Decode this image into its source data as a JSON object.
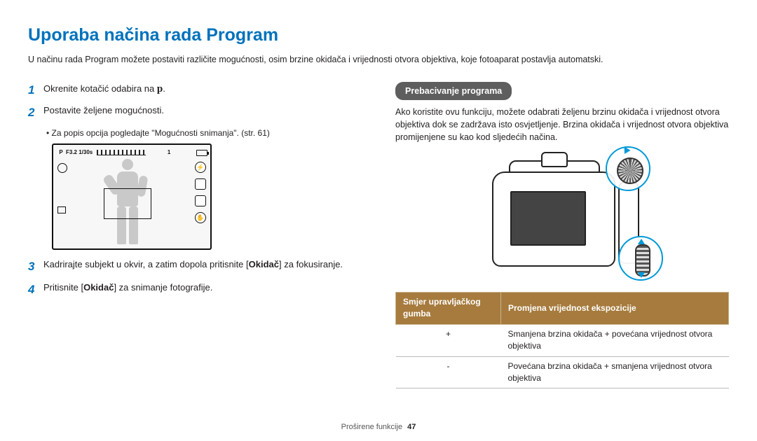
{
  "title": "Uporaba načina rada Program",
  "intro": "U načinu rada Program možete postaviti različite mogućnosti, osim brzine okidača i vrijednosti otvora objektiva, koje fotoaparat postavlja automatski.",
  "steps": {
    "s1": {
      "num": "1",
      "text_a": "Okrenite kotačić odabira na ",
      "mode_icon": "p"
    },
    "s2": {
      "num": "2",
      "text": "Postavite željene mogućnosti."
    },
    "s2_sub": "Za popis opcija pogledajte \"Mogućnosti snimanja\". (str. 61)",
    "s3": {
      "num": "3",
      "text_a": "Kadrirajte subjekt u okvir, a zatim dopola pritisnite [",
      "bold": "Okidač",
      "text_b": "] za fokusiranje."
    },
    "s4": {
      "num": "4",
      "text_a": "Pritisnite [",
      "bold": "Okidač",
      "text_b": "] za snimanje fotografije."
    }
  },
  "lcd": {
    "exposure_label": "F3.2  1/30s",
    "mode": "P",
    "count": "1"
  },
  "right": {
    "pill": "Prebacivanje programa",
    "para": "Ako koristite ovu funkciju, možete odabrati željenu brzinu okidača i vrijednost otvora objektiva dok se zadržava isto osvjetljenje. Brzina okidača i vrijednost otvora objektiva promijenjene su kao kod sljedećih načina."
  },
  "table": {
    "header1": "Smjer upravljačkog gumba",
    "header2": "Promjena vrijednost ekspozicije",
    "rows": [
      {
        "dir": "+",
        "desc": "Smanjena brzina okidača + povećana vrijednost otvora objektiva"
      },
      {
        "dir": "-",
        "desc": "Povećana brzina okidača + smanjena vrijednost otvora objektiva"
      }
    ]
  },
  "footer": {
    "section": "Proširene funkcije",
    "page": "47"
  }
}
